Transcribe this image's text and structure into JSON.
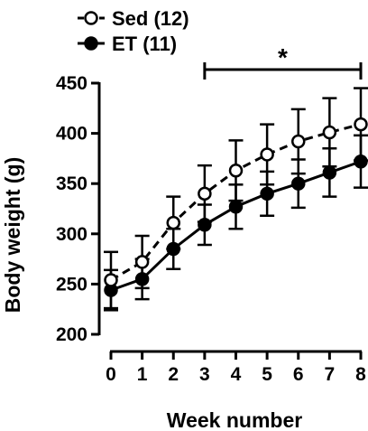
{
  "chart_data": {
    "type": "line",
    "title": "",
    "xlabel": "Week number",
    "ylabel": "Body weight (g)",
    "x": [
      0,
      1,
      2,
      3,
      4,
      5,
      6,
      7,
      8
    ],
    "xlim": [
      0,
      8
    ],
    "ylim": [
      200,
      450
    ],
    "yticks": [
      200,
      250,
      300,
      350,
      400,
      450
    ],
    "grid": false,
    "legend_position": "top-left",
    "series": [
      {
        "name": "Sed (12)",
        "marker": "open-circle",
        "line_style": "dashed",
        "color": "#000000",
        "values": [
          254,
          272,
          311,
          340,
          363,
          379,
          392,
          401,
          409
        ],
        "error": [
          28,
          26,
          26,
          28,
          30,
          30,
          32,
          34,
          36
        ]
      },
      {
        "name": "ET (11)",
        "marker": "filled-circle",
        "line_style": "solid",
        "color": "#000000",
        "values": [
          244,
          255,
          285,
          309,
          327,
          340,
          350,
          361,
          372
        ],
        "error": [
          20,
          20,
          20,
          20,
          22,
          22,
          24,
          24,
          26
        ]
      }
    ],
    "annotations": [
      {
        "type": "significance-bracket",
        "x_from": 3,
        "x_to": 8,
        "label": "*"
      }
    ]
  }
}
